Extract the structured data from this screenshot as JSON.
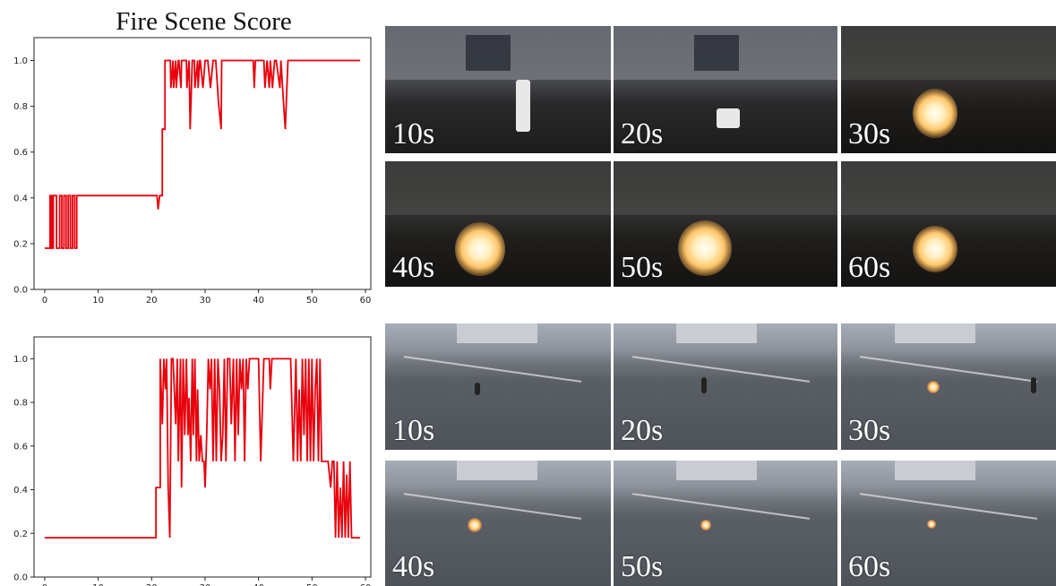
{
  "title": "Fire Scene Score",
  "colors": {
    "line": "#e8000b",
    "axis": "#222222"
  },
  "chart_data": [
    {
      "type": "line",
      "title": "Fire Scene Score",
      "xlim": [
        -2,
        61
      ],
      "ylim": [
        0.0,
        1.1
      ],
      "xticks": [
        0,
        10,
        20,
        30,
        40,
        50,
        60
      ],
      "yticks": [
        "0.0",
        "0.2",
        "0.4",
        "0.6",
        "0.8",
        "1.0"
      ],
      "series": [
        {
          "color": "#e8000b",
          "x": [
            0,
            1.0,
            1.0,
            1.3,
            1.3,
            1.6,
            1.6,
            2.2,
            2.2,
            2.8,
            2.8,
            3.2,
            3.2,
            3.6,
            3.6,
            4.0,
            4.0,
            4.4,
            4.4,
            4.8,
            4.8,
            5.2,
            5.2,
            5.6,
            5.6,
            6.0,
            6.0,
            6.5,
            6.5,
            21.0,
            21.2,
            21.5,
            22.0,
            22.0,
            22.5,
            22.5,
            23.5,
            23.6,
            24.0,
            24.1,
            24.5,
            24.6,
            25.0,
            25.1,
            25.5,
            25.6,
            26.5,
            26.6,
            27.0,
            27.2,
            27.6,
            28.0,
            28.1,
            28.6,
            28.7,
            29.0,
            29.1,
            29.6,
            30.0,
            30.5,
            31.0,
            31.5,
            32.0,
            32.5,
            33.0,
            33.1,
            39.0,
            39.2,
            39.4,
            41.0,
            41.2,
            41.6,
            42.0,
            42.2,
            42.6,
            43.0,
            43.3,
            44.0,
            44.2,
            44.5,
            45.0,
            45.5,
            59.0
          ],
          "y": [
            0.18,
            0.18,
            0.41,
            0.41,
            0.18,
            0.18,
            0.41,
            0.41,
            0.18,
            0.18,
            0.41,
            0.41,
            0.18,
            0.18,
            0.41,
            0.41,
            0.18,
            0.18,
            0.41,
            0.41,
            0.18,
            0.18,
            0.41,
            0.41,
            0.18,
            0.18,
            0.41,
            0.41,
            0.41,
            0.41,
            0.35,
            0.41,
            0.41,
            0.7,
            0.7,
            1.0,
            1.0,
            0.88,
            1.0,
            0.88,
            1.0,
            0.88,
            1.0,
            1.0,
            0.88,
            1.0,
            1.0,
            0.88,
            1.0,
            0.7,
            1.0,
            1.0,
            0.88,
            1.0,
            0.88,
            1.0,
            1.0,
            0.88,
            1.0,
            1.0,
            0.88,
            1.0,
            1.0,
            0.82,
            0.7,
            1.0,
            1.0,
            0.88,
            1.0,
            1.0,
            0.88,
            1.0,
            0.88,
            1.0,
            0.88,
            1.0,
            1.0,
            0.88,
            1.0,
            0.88,
            0.7,
            1.0,
            1.0
          ]
        }
      ]
    },
    {
      "type": "line",
      "xlim": [
        -2,
        61
      ],
      "ylim": [
        0.0,
        1.1
      ],
      "xticks": [
        0,
        10,
        20,
        30,
        40,
        50,
        60
      ],
      "yticks": [
        "0.0",
        "0.2",
        "0.4",
        "0.6",
        "0.8",
        "1.0"
      ],
      "series": [
        {
          "color": "#e8000b",
          "x": [
            0,
            20.8,
            20.8,
            21.2,
            21.6,
            21.6,
            22.0,
            22.3,
            22.6,
            22.8,
            23.1,
            23.4,
            23.7,
            24.0,
            24.5,
            24.8,
            25.0,
            25.4,
            25.6,
            25.9,
            26.2,
            26.5,
            26.8,
            27.0,
            27.3,
            27.6,
            27.8,
            28.1,
            28.4,
            28.6,
            28.9,
            29.2,
            29.5,
            29.8,
            30.0,
            30.3,
            30.6,
            30.9,
            31.2,
            31.5,
            31.8,
            32.1,
            32.4,
            32.7,
            33.0,
            33.3,
            33.6,
            33.9,
            34.2,
            34.6,
            34.9,
            35.3,
            35.6,
            35.9,
            36.2,
            36.5,
            36.8,
            37.1,
            37.4,
            37.7,
            38.0,
            38.3,
            38.6,
            39.0,
            39.4,
            40.0,
            40.4,
            41.0,
            41.5,
            42.0,
            42.2,
            42.5,
            43.0,
            46.0,
            46.5,
            47.0,
            47.3,
            47.6,
            47.9,
            48.2,
            48.5,
            48.8,
            49.1,
            49.4,
            49.7,
            50.0,
            50.3,
            50.6,
            50.9,
            51.2,
            51.5,
            51.8,
            52.1,
            52.4,
            52.7,
            53.0,
            53.5,
            53.8,
            54.1,
            54.4,
            54.7,
            55.0,
            55.3,
            55.6,
            55.9,
            56.2,
            56.5,
            56.8,
            57.1,
            57.4,
            57.7,
            58.0,
            58.3,
            58.6,
            59.0
          ],
          "y": [
            0.18,
            0.18,
            0.41,
            0.41,
            0.41,
            1.0,
            0.7,
            1.0,
            0.86,
            1.0,
            0.41,
            0.18,
            1.0,
            1.0,
            0.7,
            1.0,
            0.53,
            1.0,
            0.41,
            1.0,
            0.65,
            1.0,
            0.65,
            0.82,
            0.53,
            1.0,
            0.65,
            1.0,
            0.53,
            0.86,
            0.53,
            0.65,
            0.53,
            0.53,
            0.41,
            0.65,
            1.0,
            0.86,
            1.0,
            0.53,
            1.0,
            0.53,
            1.0,
            0.86,
            0.53,
            0.65,
            1.0,
            0.53,
            1.0,
            1.0,
            0.7,
            1.0,
            0.53,
            1.0,
            0.65,
            1.0,
            0.86,
            1.0,
            0.53,
            1.0,
            0.86,
            1.0,
            1.0,
            1.0,
            1.0,
            1.0,
            0.53,
            1.0,
            1.0,
            1.0,
            0.86,
            1.0,
            1.0,
            1.0,
            0.53,
            1.0,
            0.53,
            0.86,
            0.53,
            1.0,
            0.65,
            1.0,
            0.53,
            1.0,
            0.53,
            1.0,
            0.53,
            0.86,
            1.0,
            0.53,
            1.0,
            0.53,
            0.53,
            0.53,
            0.53,
            0.53,
            0.41,
            0.53,
            0.53,
            0.18,
            0.53,
            0.18,
            0.41,
            0.18,
            0.53,
            0.18,
            0.47,
            0.18,
            0.53,
            0.18,
            0.18,
            0.18,
            0.18,
            0.18,
            0.18
          ]
        }
      ]
    }
  ],
  "frames": {
    "top": [
      "10s",
      "20s",
      "30s",
      "40s",
      "50s",
      "60s"
    ],
    "bottom": [
      "10s",
      "20s",
      "30s",
      "40s",
      "50s",
      "60s"
    ]
  }
}
